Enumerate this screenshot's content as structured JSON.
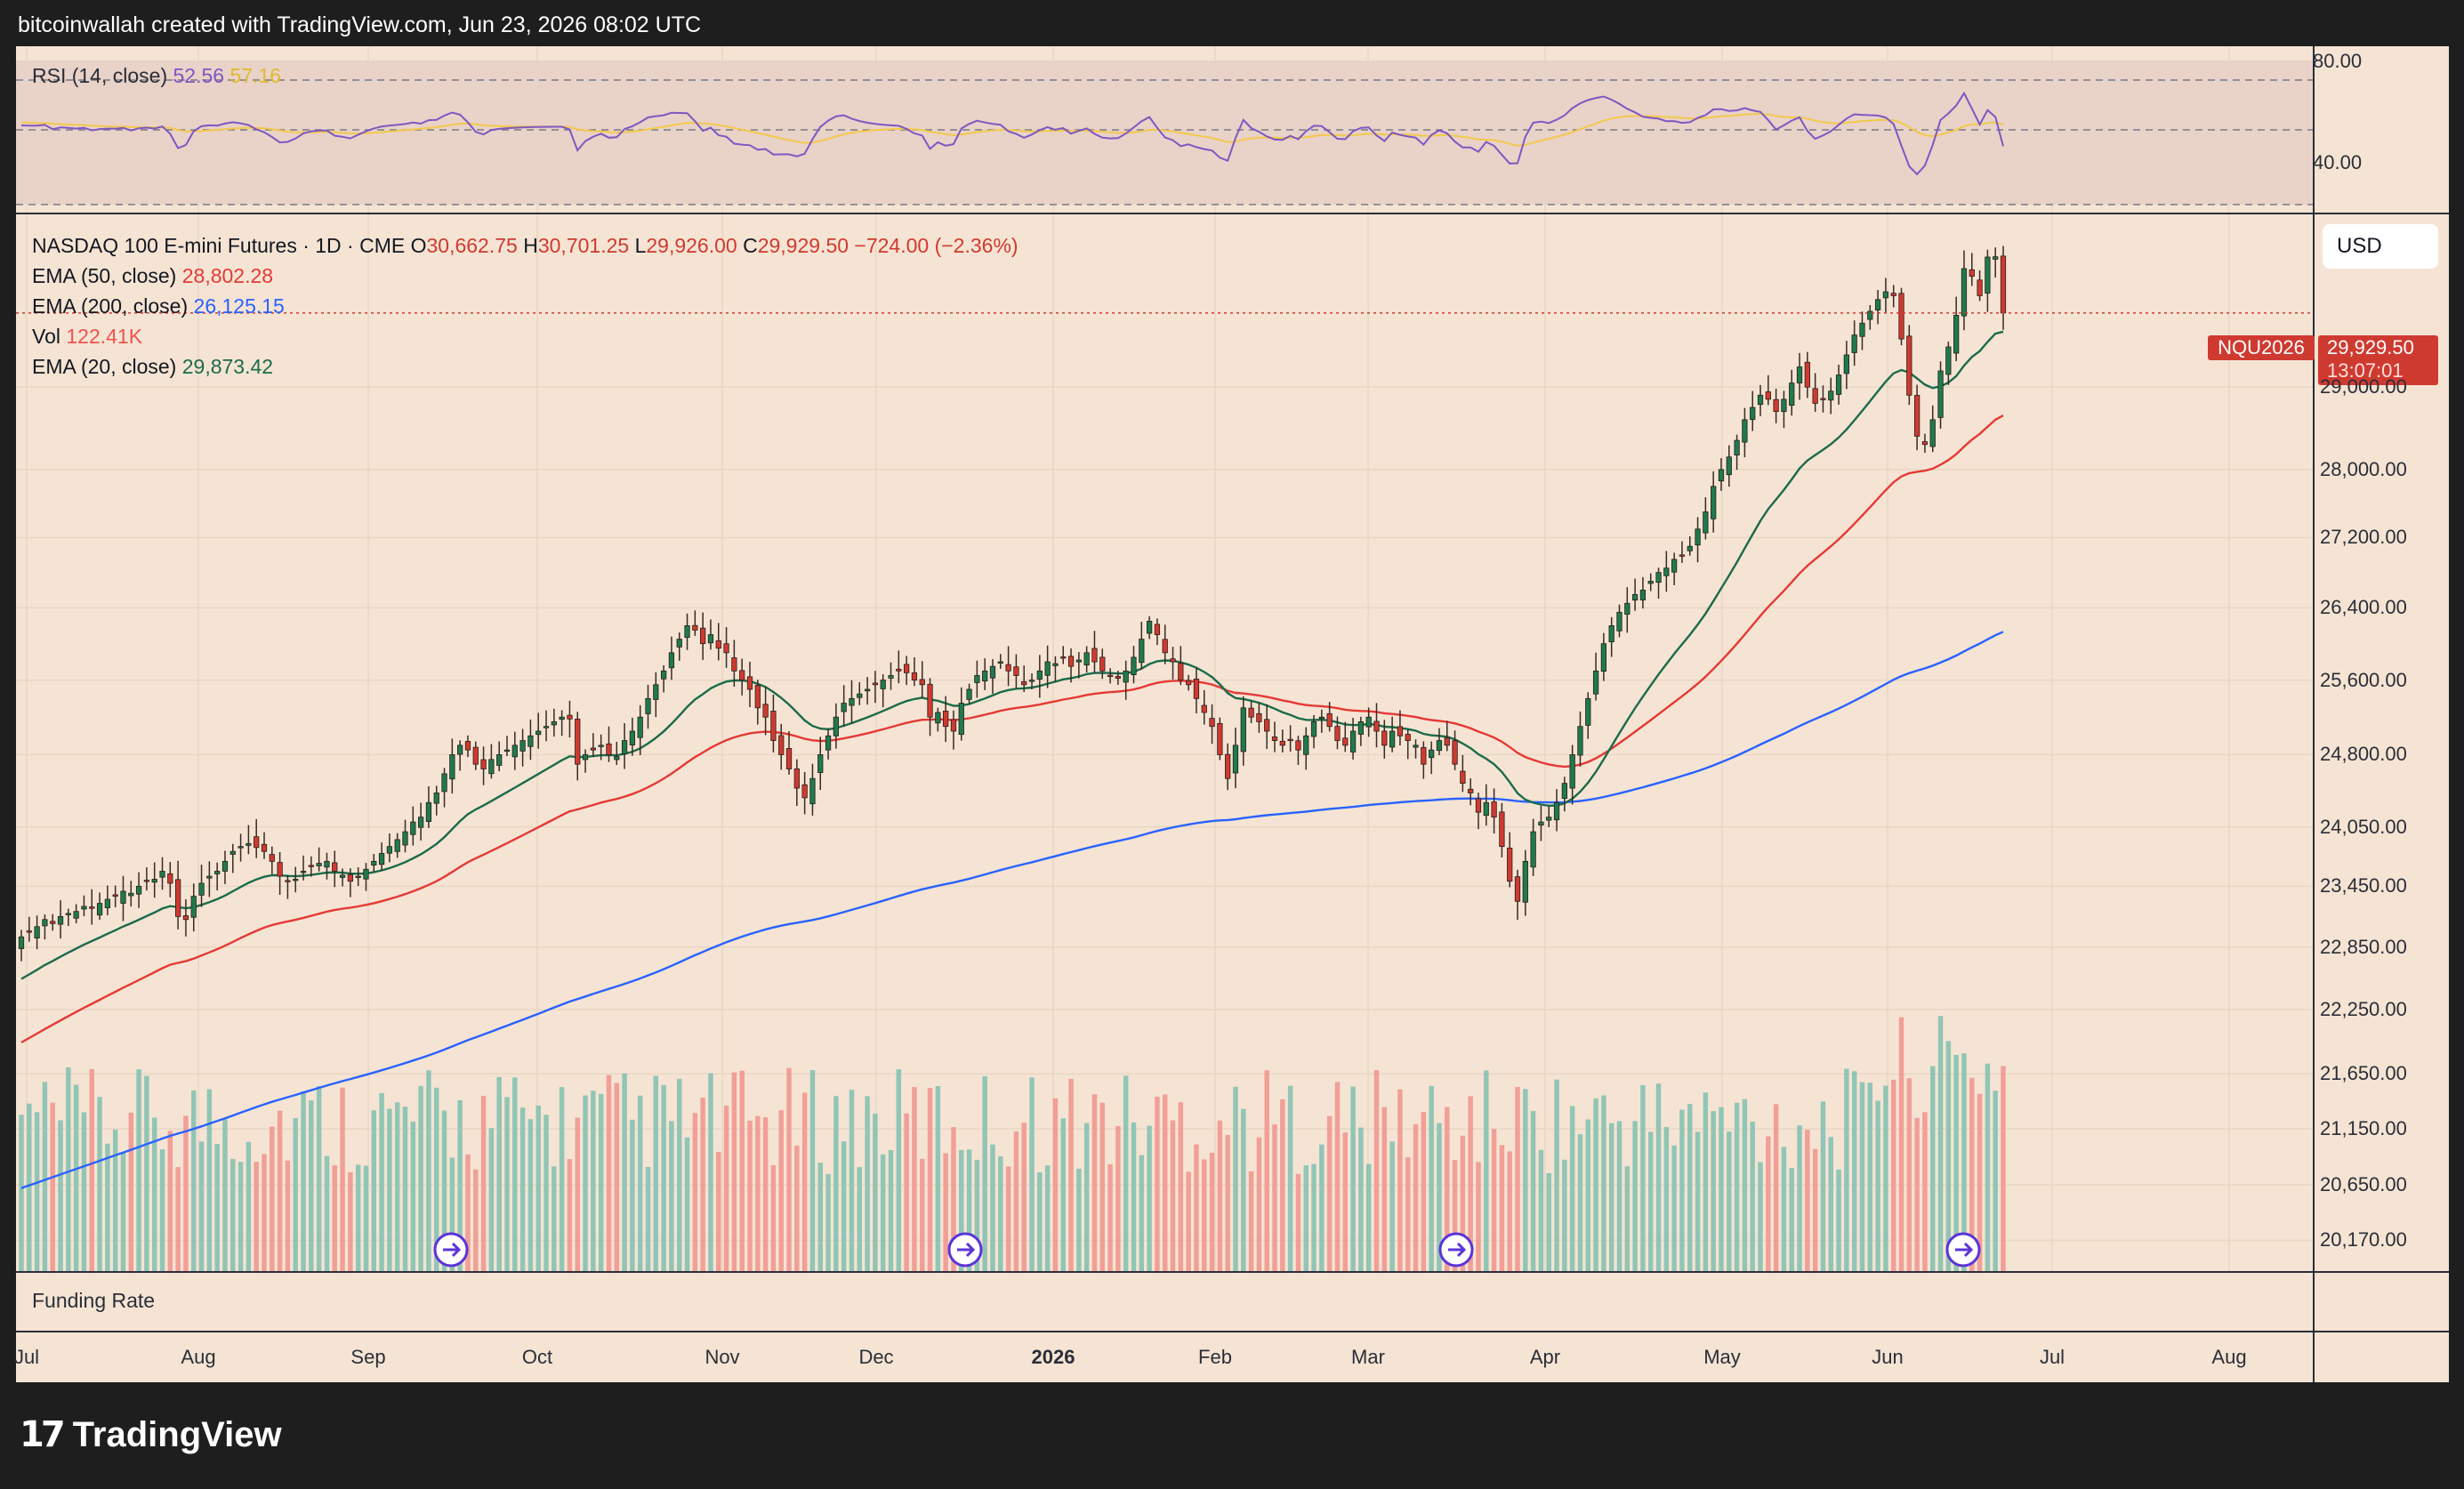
{
  "header": {
    "attribution": "bitcoinwallah created with TradingView.com, Jun 23, 2026 08:02 UTC"
  },
  "footer": {
    "logo_text": "TradingView",
    "logo_mark": "17"
  },
  "rsi_panel": {
    "label": "RSI (14, close)",
    "rsi_value": "52.56",
    "ma_value": "57.16",
    "levels": [
      "80.00",
      "40.00"
    ]
  },
  "legend": {
    "symbol": "NASDAQ 100 E-mini Futures · 1D · CME",
    "open_label": "O",
    "open": "30,662.75",
    "high_label": "H",
    "high": "30,701.25",
    "low_label": "L",
    "low": "29,926.00",
    "close_label": "C",
    "close": "29,929.50",
    "change": "−724.00 (−2.36%)",
    "ema50_label": "EMA (50, close)",
    "ema50": "28,802.28",
    "ema200_label": "EMA (200, close)",
    "ema200": "26,125.15",
    "vol_label": "Vol",
    "vol": "122.41K",
    "ema20_label": "EMA (20, close)",
    "ema20": "29,873.42"
  },
  "currency_button": "USD",
  "price_tag": {
    "ticker": "NQU2026",
    "price": "29,929.50",
    "countdown": "13:07:01"
  },
  "funding_panel": {
    "label": "Funding Rate"
  },
  "colors": {
    "bull": "#26a69a",
    "bear": "#ef5350",
    "bull_body": "#1f7a4d",
    "bear_body": "#cf3a30",
    "ema20": "#1b6b4b",
    "ema50": "#e53935",
    "ema200": "#2962ff",
    "rsi": "#7e57c2",
    "rsi_ma": "#f2c94c",
    "background": "#f5e4d3"
  },
  "chart_data": {
    "type": "candlestick",
    "title": "NASDAQ 100 E-mini Futures · 1D · CME",
    "y_axis_labels": [
      "29,000.00",
      "28,000.00",
      "27,200.00",
      "26,400.00",
      "25,600.00",
      "24,800.00",
      "24,050.00",
      "23,450.00",
      "22,850.00",
      "22,250.00",
      "21,650.00",
      "21,150.00",
      "20,650.00",
      "20,170.00"
    ],
    "x_axis_labels": [
      "Jul",
      "Aug",
      "Sep",
      "Oct",
      "Nov",
      "Dec",
      "2026",
      "Feb",
      "Mar",
      "Apr",
      "May",
      "Jun",
      "Jul",
      "Aug"
    ],
    "scale": "log",
    "y_range": [
      19900,
      31200
    ],
    "grid": true,
    "closes": [
      22950,
      23000,
      23050,
      23120,
      23080,
      23150,
      23180,
      23200,
      23250,
      23230,
      23280,
      23320,
      23350,
      23400,
      23380,
      23450,
      23500,
      23520,
      23600,
      23480,
      23150,
      23120,
      23350,
      23480,
      23550,
      23600,
      23700,
      23800,
      23850,
      23880,
      23840,
      23800,
      23700,
      23550,
      23500,
      23520,
      23600,
      23650,
      23680,
      23700,
      23600,
      23560,
      23500,
      23550,
      23620,
      23700,
      23780,
      23850,
      23920,
      24000,
      24100,
      24150,
      24300,
      24400,
      24600,
      24800,
      24900,
      24850,
      24700,
      24650,
      24750,
      24800,
      24850,
      24900,
      24950,
      25000,
      25050,
      25100,
      25150,
      25200,
      25180,
      24700,
      24800,
      24850,
      24900,
      24800,
      24780,
      24950,
      25050,
      25200,
      25400,
      25550,
      25700,
      25900,
      26050,
      26200,
      26150,
      26000,
      26100,
      25950,
      25900,
      25700,
      25600,
      25500,
      25300,
      25200,
      24950,
      24800,
      24650,
      24450,
      24350,
      24550,
      24800,
      25000,
      25200,
      25350,
      25400,
      25450,
      25500,
      25550,
      25600,
      25650,
      25700,
      25680,
      25600,
      25550,
      25200,
      25250,
      25100,
      25050,
      25350,
      25500,
      25650,
      25700,
      25750,
      25800,
      25700,
      25650,
      25550,
      25600,
      25700,
      25800,
      25780,
      25850,
      25750,
      25820,
      25900,
      25800,
      25700,
      25650,
      25620,
      25700,
      25850,
      26050,
      26250,
      26100,
      25900,
      25800,
      25600,
      25550,
      25400,
      25250,
      25100,
      24800,
      24550,
      24900,
      25300,
      25200,
      25150,
      25050,
      24950,
      24900,
      24950,
      24850,
      25000,
      25150,
      25200,
      25100,
      24950,
      24900,
      25050,
      25150,
      25200,
      25050,
      24900,
      25050,
      25000,
      24950,
      24900,
      24700,
      24850,
      24950,
      24900,
      24700,
      24500,
      24400,
      24200,
      24300,
      24150,
      23850,
      23500,
      23300,
      23700,
      24000,
      24100,
      24150,
      24300,
      24500,
      24800,
      25100,
      25400,
      25700,
      26000,
      26200,
      26350,
      26450,
      26550,
      26600,
      26700,
      26800,
      26850,
      26950,
      27000,
      27100,
      27300,
      27500,
      27800,
      28000,
      28150,
      28350,
      28600,
      28750,
      28900,
      28850,
      28700,
      28850,
      29050,
      29250,
      29000,
      28800,
      28850,
      28950,
      29150,
      29400,
      29650,
      29800,
      29950,
      30100,
      30200,
      30150,
      29600,
      28900,
      28400,
      28300,
      28600,
      29200,
      29500,
      29900,
      30500,
      30400,
      30150,
      30650,
      30654,
      29929.5
    ],
    "ema20_last": 29873.42,
    "ema50_last": 28802.28,
    "ema200_last": 26125.15,
    "volume_last": "122.41K",
    "rsi_last": 52.56,
    "rsi_ma_last": 57.16
  }
}
